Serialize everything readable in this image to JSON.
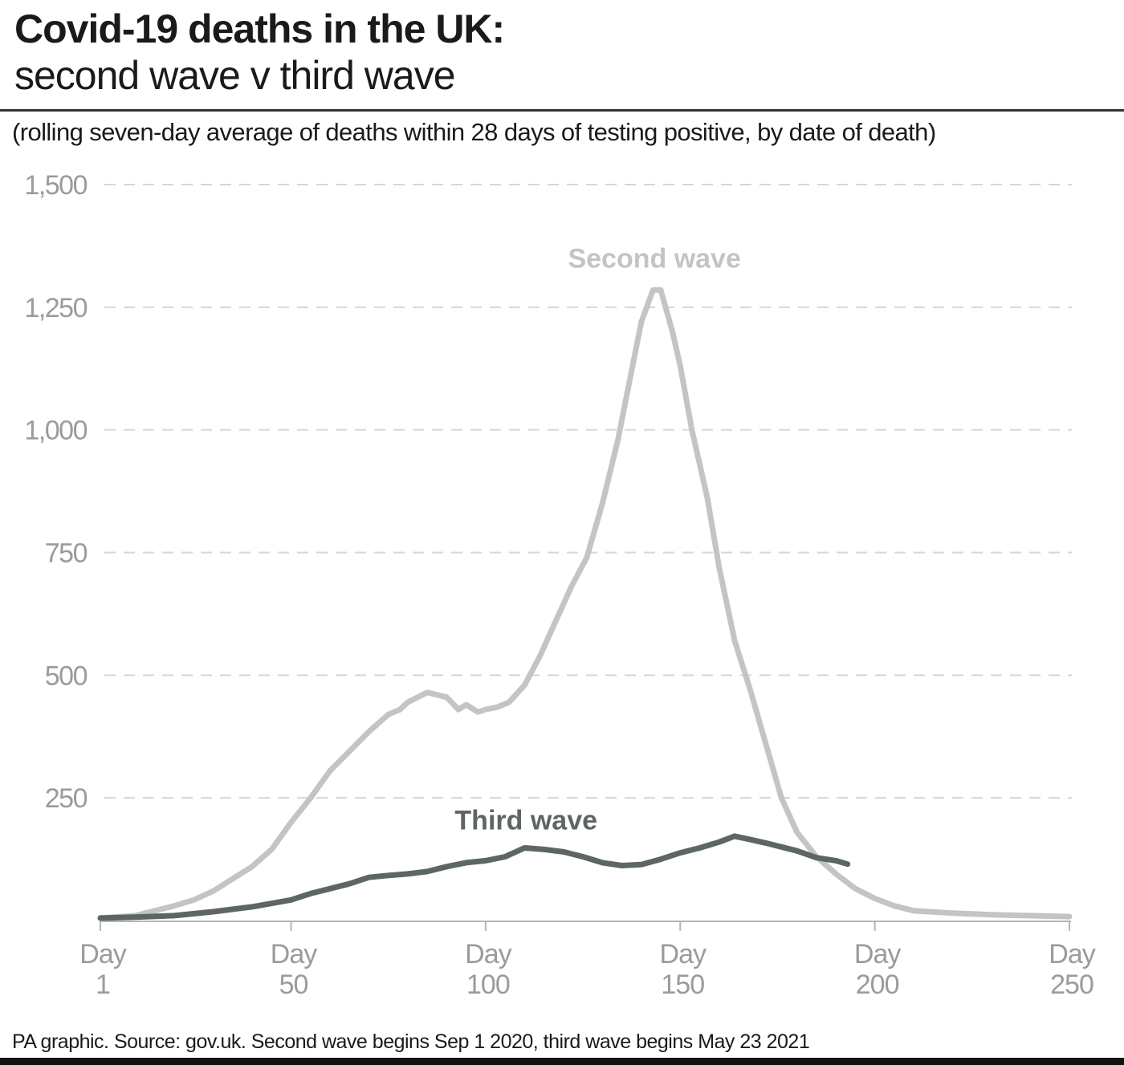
{
  "header": {
    "title": "Covid-19 deaths in the UK:",
    "subtitle": "second wave v third wave",
    "note": "(rolling seven-day average of deaths within 28 days of testing positive, by date of death)"
  },
  "footer": {
    "source": "PA graphic. Source: gov.uk. Second wave begins Sep 1 2020, third wave begins May 23 2021"
  },
  "colors": {
    "second_wave": "#c2c4c6",
    "third_wave": "#5e6664",
    "grid": "#d6d6d6",
    "axis": "#b5b5b5",
    "tick_text": "#9b9b9b"
  },
  "chart_data": {
    "type": "line",
    "title": "Covid-19 deaths in the UK: second wave v third wave",
    "xlabel": "",
    "ylabel": "",
    "xlim": [
      1,
      250
    ],
    "ylim": [
      0,
      1500
    ],
    "grid": true,
    "y_ticks": [
      {
        "value": 250,
        "label": "250"
      },
      {
        "value": 500,
        "label": "500"
      },
      {
        "value": 750,
        "label": "750"
      },
      {
        "value": 1000,
        "label": "1,000"
      },
      {
        "value": 1250,
        "label": "1,250"
      },
      {
        "value": 1500,
        "label": "1,500"
      }
    ],
    "x_ticks": [
      {
        "value": 1,
        "line1": "Day",
        "line2": "1"
      },
      {
        "value": 50,
        "line1": "Day",
        "line2": "50"
      },
      {
        "value": 100,
        "line1": "Day",
        "line2": "100"
      },
      {
        "value": 150,
        "line1": "Day",
        "line2": "150"
      },
      {
        "value": 200,
        "line1": "Day",
        "line2": "200"
      },
      {
        "value": 250,
        "line1": "Day",
        "line2": "250"
      }
    ],
    "series": [
      {
        "name": "Second wave",
        "label_anchor": {
          "x": 144,
          "y": 1350
        },
        "x": [
          1,
          10,
          20,
          25,
          30,
          35,
          40,
          45,
          50,
          55,
          60,
          65,
          70,
          75,
          78,
          80,
          85,
          90,
          93,
          95,
          98,
          100,
          103,
          106,
          110,
          114,
          118,
          122,
          126,
          130,
          134,
          137,
          140,
          143,
          145,
          148,
          150,
          153,
          157,
          160,
          164,
          168,
          172,
          176,
          180,
          185,
          190,
          195,
          200,
          205,
          210,
          220,
          230,
          240,
          250
        ],
        "values": [
          5,
          10,
          30,
          42,
          60,
          85,
          110,
          145,
          200,
          250,
          305,
          345,
          385,
          420,
          430,
          445,
          465,
          455,
          430,
          440,
          425,
          430,
          435,
          445,
          480,
          540,
          610,
          680,
          740,
          850,
          980,
          1100,
          1220,
          1285,
          1285,
          1200,
          1130,
          1000,
          860,
          720,
          570,
          470,
          360,
          250,
          180,
          130,
          95,
          65,
          45,
          30,
          20,
          15,
          12,
          10,
          8
        ]
      },
      {
        "name": "Third wave",
        "label_anchor": {
          "x": 111,
          "y": 205
        },
        "x": [
          1,
          10,
          20,
          30,
          40,
          50,
          55,
          60,
          65,
          70,
          75,
          80,
          85,
          90,
          95,
          100,
          105,
          110,
          115,
          120,
          125,
          130,
          135,
          140,
          145,
          150,
          155,
          160,
          164,
          168,
          172,
          176,
          180,
          185,
          190,
          193
        ],
        "values": [
          5,
          7,
          10,
          18,
          28,
          42,
          55,
          65,
          75,
          88,
          92,
          95,
          100,
          110,
          118,
          122,
          130,
          148,
          145,
          140,
          130,
          118,
          112,
          114,
          125,
          138,
          148,
          160,
          172,
          165,
          158,
          150,
          142,
          128,
          122,
          115
        ]
      }
    ]
  }
}
